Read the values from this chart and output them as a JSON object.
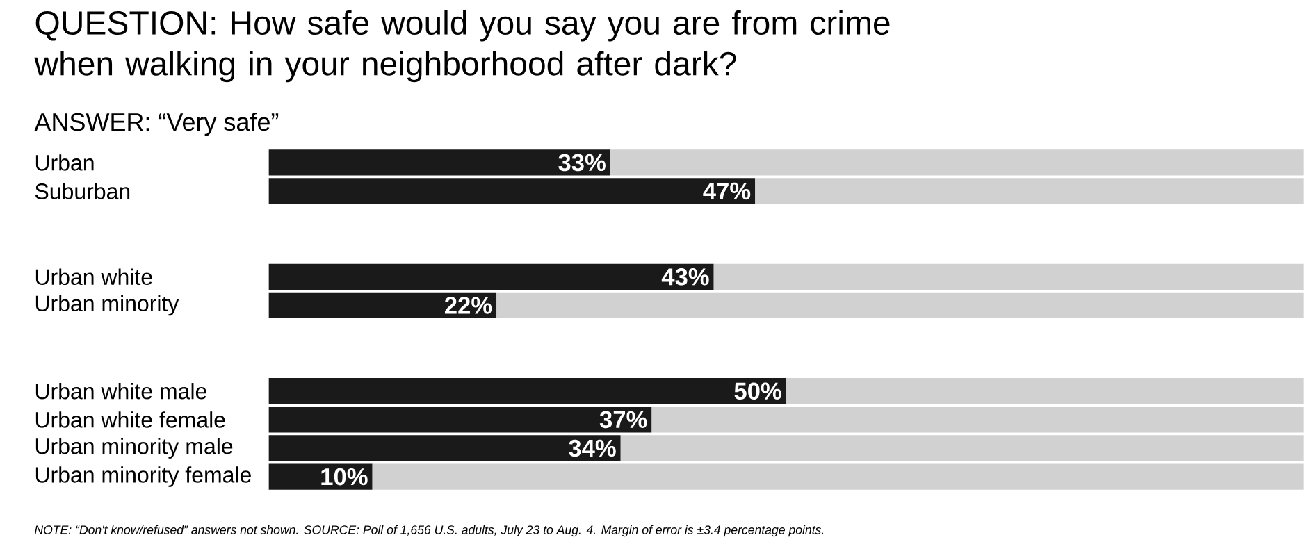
{
  "chart_data": {
    "type": "bar",
    "orientation": "horizontal",
    "stacked": true,
    "title": "QUESTION: How safe would you say you are from crime when walking in your neighborhood after dark?",
    "subtitle": "ANSWER: “Very safe”",
    "categories": [
      "Urban",
      "Suburban",
      null,
      null,
      "Urban white",
      "Urban minority",
      null,
      null,
      "Urban white male",
      "Urban white female",
      "Urban minority male",
      "Urban minority female"
    ],
    "series": [
      {
        "color": "#1a1a1a",
        "values": [
          33,
          47,
          null,
          null,
          43,
          22,
          null,
          null,
          50,
          37,
          34,
          10
        ],
        "value_labels": [
          "33%",
          "47%",
          null,
          null,
          "43%",
          "22%",
          null,
          null,
          "50%",
          "37%",
          "34%",
          "10%"
        ]
      },
      {
        "color": "#d1d1d1",
        "values": [
          67,
          53,
          null,
          null,
          57,
          78,
          null,
          null,
          50,
          63,
          66,
          90
        ]
      }
    ],
    "xlim": [
      0,
      100
    ],
    "tick_labels": "y",
    "annotations": [
      "NOTE: “Don't know/refused” answers not shown. SOURCE: Poll of 1,656 U.S. adults, July 23 to Aug. 4. Margin of error is ±3.4 percentage points."
    ]
  }
}
